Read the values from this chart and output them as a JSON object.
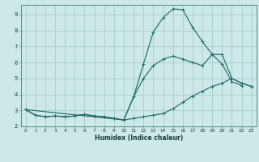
{
  "xlabel": "Humidex (Indice chaleur)",
  "xlim": [
    -0.5,
    23.5
  ],
  "ylim": [
    2,
    9.6
  ],
  "xticks": [
    0,
    1,
    2,
    3,
    4,
    5,
    6,
    7,
    8,
    9,
    10,
    11,
    12,
    13,
    14,
    15,
    16,
    17,
    18,
    19,
    20,
    21,
    22,
    23
  ],
  "yticks": [
    2,
    3,
    4,
    5,
    6,
    7,
    8,
    9
  ],
  "bg_color": "#cce8e8",
  "grid_color": "#aacccc",
  "line_color": "#1a6a60",
  "line1_x": [
    0,
    1,
    2,
    3,
    4,
    5,
    6,
    7,
    8,
    9,
    10,
    11,
    12,
    13,
    14,
    15,
    16,
    17,
    18,
    19,
    20,
    21,
    22
  ],
  "line1_y": [
    3.05,
    2.7,
    2.6,
    2.65,
    2.6,
    2.65,
    2.75,
    2.65,
    2.6,
    2.5,
    2.4,
    3.85,
    5.9,
    7.9,
    8.8,
    9.35,
    9.3,
    8.2,
    7.3,
    6.5,
    5.9,
    4.8,
    4.55
  ],
  "line2_x": [
    0,
    1,
    2,
    3,
    4,
    5,
    6,
    7,
    8,
    9,
    10,
    11,
    12,
    13,
    14,
    15,
    16,
    17,
    18,
    19,
    20,
    21,
    22,
    23
  ],
  "line2_y": [
    3.05,
    2.7,
    2.6,
    2.65,
    2.6,
    2.65,
    2.75,
    2.65,
    2.6,
    2.5,
    2.4,
    2.5,
    2.6,
    2.7,
    2.8,
    3.1,
    3.5,
    3.9,
    4.2,
    4.5,
    4.7,
    5.0,
    4.7,
    4.5
  ],
  "line3_x": [
    0,
    10,
    11,
    12,
    13,
    14,
    15,
    16,
    17,
    18,
    19,
    20,
    21,
    22,
    23
  ],
  "line3_y": [
    3.05,
    2.4,
    3.85,
    5.0,
    5.8,
    6.2,
    6.4,
    6.2,
    6.0,
    5.8,
    6.5,
    6.5,
    5.0,
    4.7,
    4.5
  ]
}
